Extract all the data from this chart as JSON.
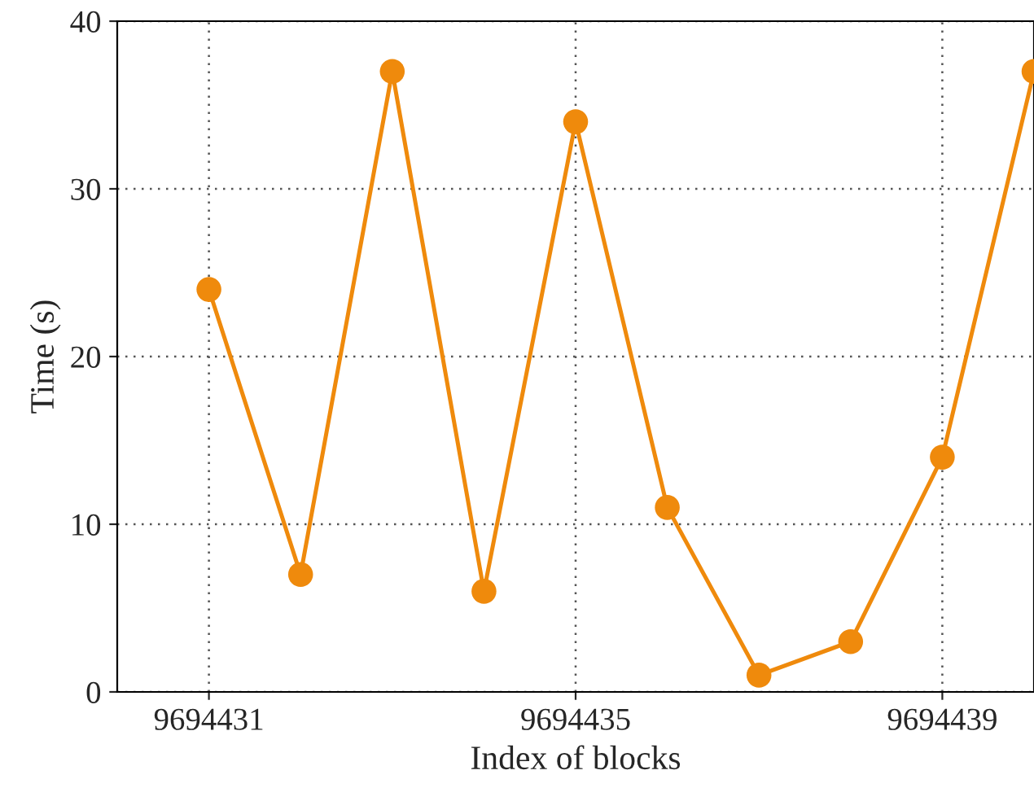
{
  "chart_data": {
    "type": "line",
    "xlabel": "Index of blocks",
    "ylabel": "Time (s)",
    "x": [
      9694431,
      9694432,
      9694433,
      9694434,
      9694435,
      9694436,
      9694437,
      9694438,
      9694439,
      9694440
    ],
    "series": [
      {
        "color": "#ef8a0c",
        "values": [
          24,
          7,
          37,
          6,
          34,
          11,
          1,
          3,
          14,
          37
        ]
      }
    ],
    "xlim": [
      9694430,
      9694440
    ],
    "xticks": [
      9694431,
      9694435,
      9694439
    ],
    "ylim": [
      0,
      40
    ],
    "yticks": [
      0,
      10,
      20,
      30,
      40
    ],
    "grid": true,
    "marker": "circle",
    "line_style": "solid"
  }
}
